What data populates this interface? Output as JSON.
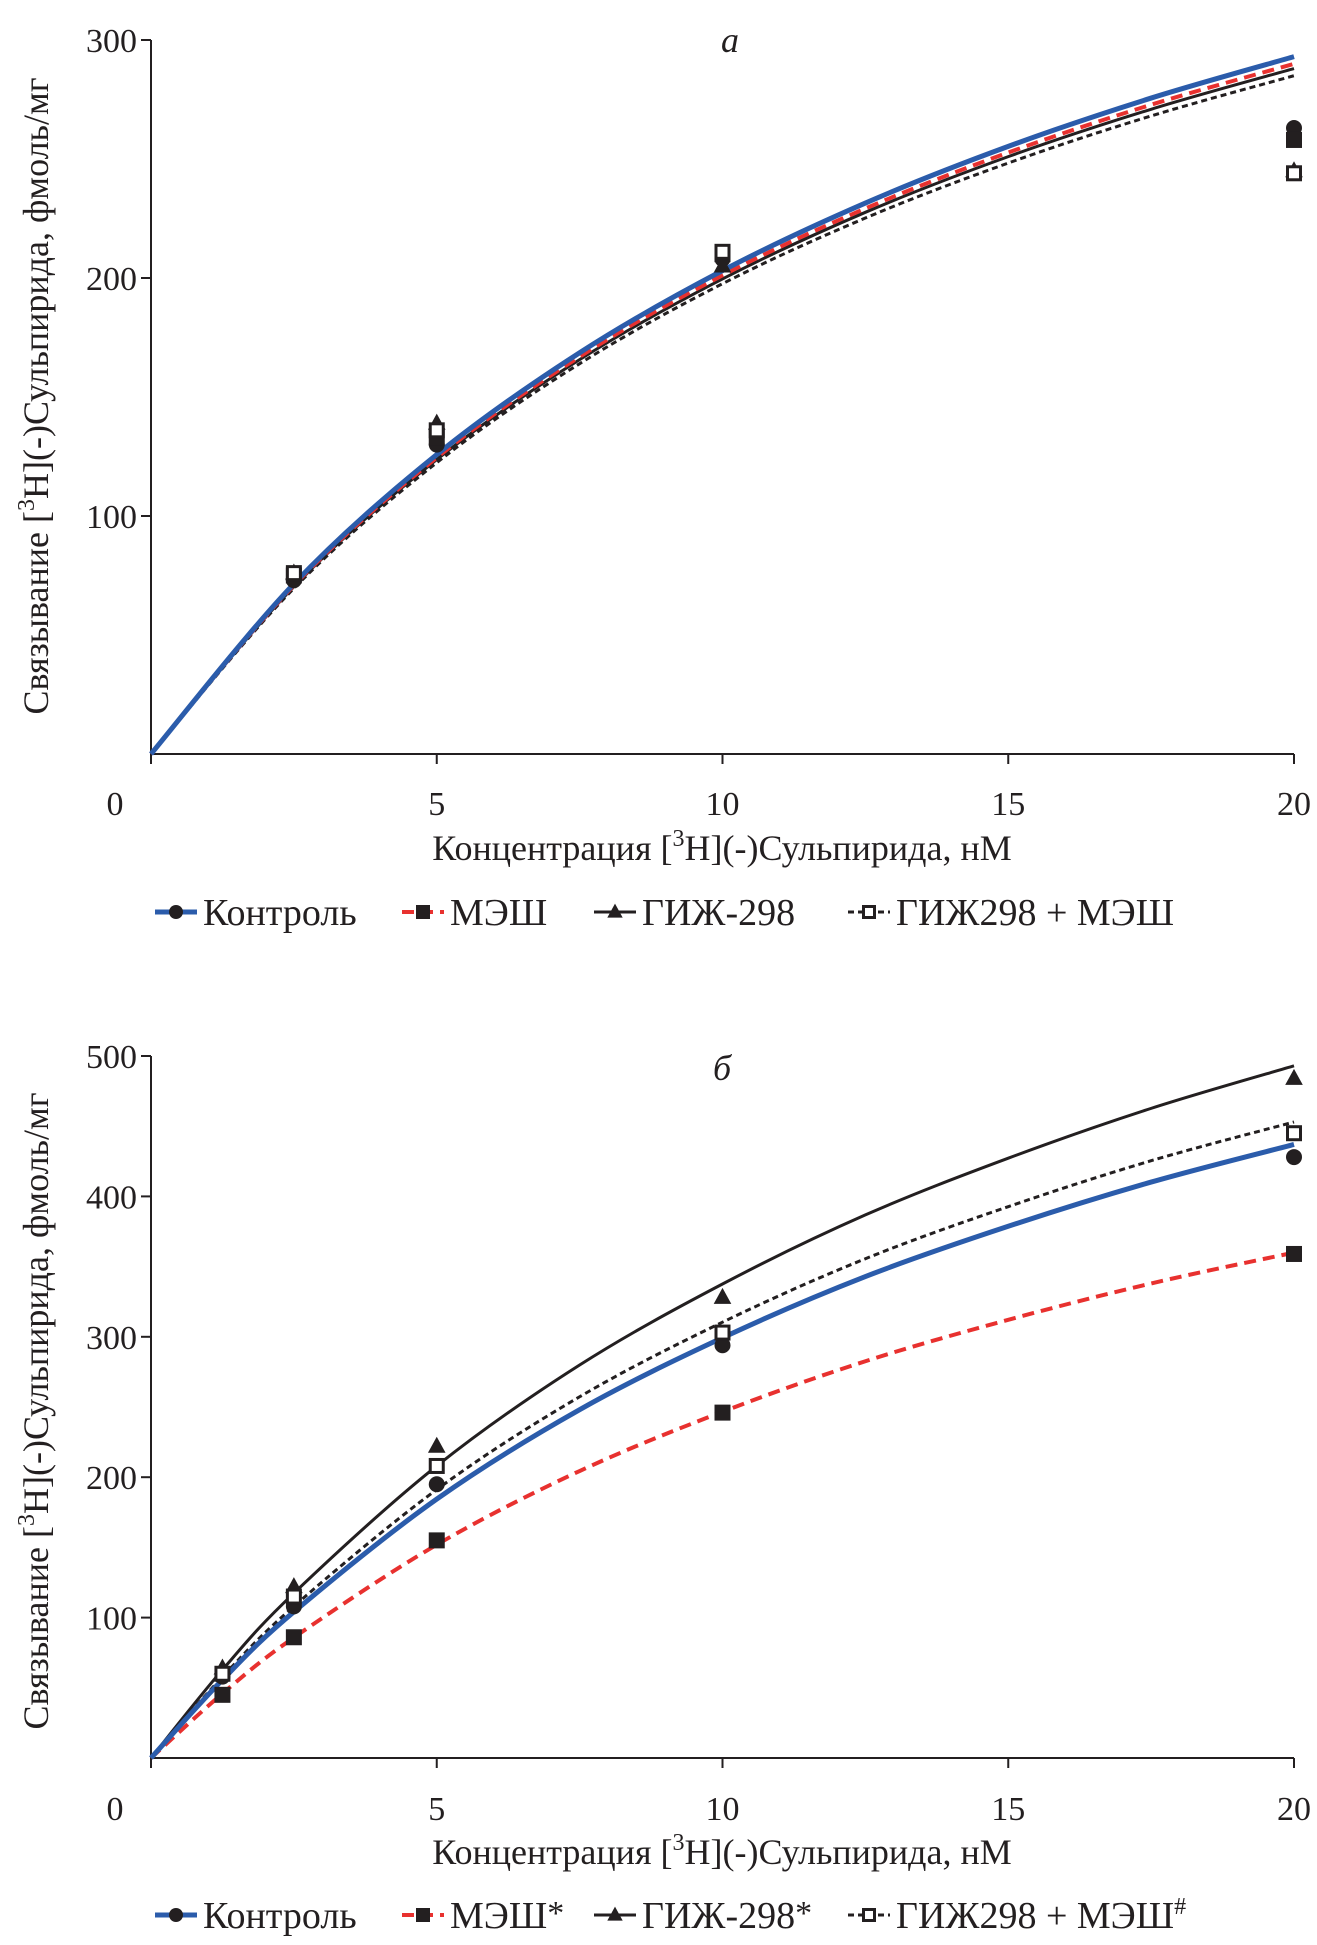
{
  "colors": {
    "control": "#2b5cab",
    "mesh": "#e8312f",
    "gizh": "#231f20",
    "gizh_mesh": "#231f20"
  },
  "chart_data": [
    {
      "panel": "a",
      "type": "scatter",
      "xlabel": {
        "pre": "Концентрация [",
        "sup": "3",
        "post": "H](-)Сульпирида, нМ"
      },
      "ylabel": {
        "pre": "Связывание [",
        "sup": "3",
        "post": "H](-)Сульпирида, фмоль/мг"
      },
      "xlim": [
        0,
        20
      ],
      "ylim": [
        0,
        300
      ],
      "xticks": [
        0,
        5,
        10,
        15,
        20
      ],
      "yticks": [
        100,
        200,
        300
      ],
      "grid": false,
      "legend": "bottom",
      "series": [
        {
          "name": "Контроль",
          "sup": "",
          "style": "control",
          "marker": "circle",
          "x": [
            2.5,
            5,
            10,
            20
          ],
          "y": [
            73,
            130,
            208,
            263
          ],
          "curve_x": [
            0,
            2.5,
            5,
            7.5,
            10,
            12.5,
            15,
            17.5,
            20
          ],
          "curve_y": [
            0,
            71.5,
            125.8,
            168.6,
            203.1,
            231.5,
            255.3,
            275.6,
            293
          ]
        },
        {
          "name": "МЭШ",
          "sup": "",
          "style": "mesh",
          "marker": "square",
          "x": [
            2.5,
            5,
            10,
            20
          ],
          "y": [
            75,
            133,
            210,
            258
          ],
          "curve_x": [
            0,
            2.5,
            5,
            7.5,
            10,
            12.5,
            15,
            17.5,
            20
          ],
          "curve_y": [
            0,
            70.8,
            124.5,
            166.9,
            201.1,
            229.2,
            252.7,
            272.8,
            290
          ]
        },
        {
          "name": "ГИЖ-298",
          "sup": "",
          "style": "gizh",
          "marker": "triangle",
          "x": [
            2.5,
            5,
            10,
            20
          ],
          "y": [
            76,
            139,
            205,
            245
          ],
          "curve_x": [
            0,
            2.5,
            5,
            7.5,
            10,
            12.5,
            15,
            17.5,
            20
          ],
          "curve_y": [
            0,
            70.3,
            123.7,
            165.7,
            199.6,
            227.6,
            251,
            270.9,
            288
          ]
        },
        {
          "name": "ГИЖ298 + МЭШ",
          "sup": "",
          "style": "gizh_mesh",
          "marker": "open-square",
          "x": [
            2.5,
            5,
            10,
            20
          ],
          "y": [
            76,
            136,
            211,
            244
          ],
          "curve_x": [
            0,
            2.5,
            5,
            7.5,
            10,
            12.5,
            15,
            17.5,
            20
          ],
          "curve_y": [
            0,
            69.6,
            122.4,
            164,
            197.6,
            225.2,
            248.3,
            268.1,
            285
          ]
        }
      ]
    },
    {
      "panel": "б",
      "type": "scatter",
      "xlabel": {
        "pre": "Концентрация [",
        "sup": "3",
        "post": "H](-)Сульпирида, нМ"
      },
      "ylabel": {
        "pre": "Связывание [",
        "sup": "3",
        "post": "H](-)Сульпирида, фмоль/мг"
      },
      "xlim": [
        0,
        20
      ],
      "ylim": [
        0,
        500
      ],
      "xticks": [
        0,
        5,
        10,
        15,
        20
      ],
      "yticks": [
        100,
        200,
        300,
        400,
        500
      ],
      "grid": false,
      "legend": "bottom",
      "series": [
        {
          "name": "Контроль",
          "sup": "",
          "style": "control",
          "marker": "circle",
          "x": [
            1.25,
            2.5,
            5,
            10,
            20
          ],
          "y": [
            58,
            108,
            195,
            294,
            428
          ],
          "curve_x": [
            0,
            1.25,
            2.5,
            5,
            7.5,
            10,
            12.5,
            15,
            17.5,
            20
          ],
          "curve_y": [
            0,
            55.7,
            104.1,
            184.4,
            248.1,
            299.3,
            342.9,
            378.7,
            410.2,
            437
          ]
        },
        {
          "name": "МЭШ",
          "sup": "*",
          "style": "mesh",
          "marker": "square",
          "x": [
            1.25,
            2.5,
            5,
            10,
            20
          ],
          "y": [
            45,
            86,
            155,
            246,
            359
          ],
          "curve_x": [
            0,
            1.25,
            2.5,
            5,
            7.5,
            10,
            12.5,
            15,
            17.5,
            20
          ],
          "curve_y": [
            0,
            45.9,
            85.8,
            151.9,
            204.4,
            246.6,
            282.6,
            312.1,
            338,
            360
          ]
        },
        {
          "name": "ГИЖ-298",
          "sup": "*",
          "style": "gizh",
          "marker": "triangle",
          "x": [
            1.25,
            2.5,
            5,
            10,
            20
          ],
          "y": [
            64,
            122,
            222,
            328,
            484
          ],
          "curve_x": [
            0,
            1.25,
            2.5,
            5,
            7.5,
            10,
            12.5,
            15,
            17.5,
            20
          ],
          "curve_y": [
            0,
            62.8,
            117.4,
            208,
            279.9,
            337.6,
            386.8,
            427.2,
            462.7,
            493
          ]
        },
        {
          "name": "ГИЖ298 + МЭШ",
          "sup": "#",
          "style": "gizh_mesh",
          "marker": "open-square",
          "x": [
            1.25,
            2.5,
            5,
            10,
            20
          ],
          "y": [
            60,
            115,
            208,
            303,
            445
          ],
          "curve_x": [
            0,
            1.25,
            2.5,
            5,
            7.5,
            10,
            12.5,
            15,
            17.5,
            20
          ],
          "curve_y": [
            0,
            57.8,
            108,
            191.2,
            257.3,
            310.4,
            355.6,
            392.7,
            425.4,
            453
          ]
        }
      ]
    }
  ]
}
